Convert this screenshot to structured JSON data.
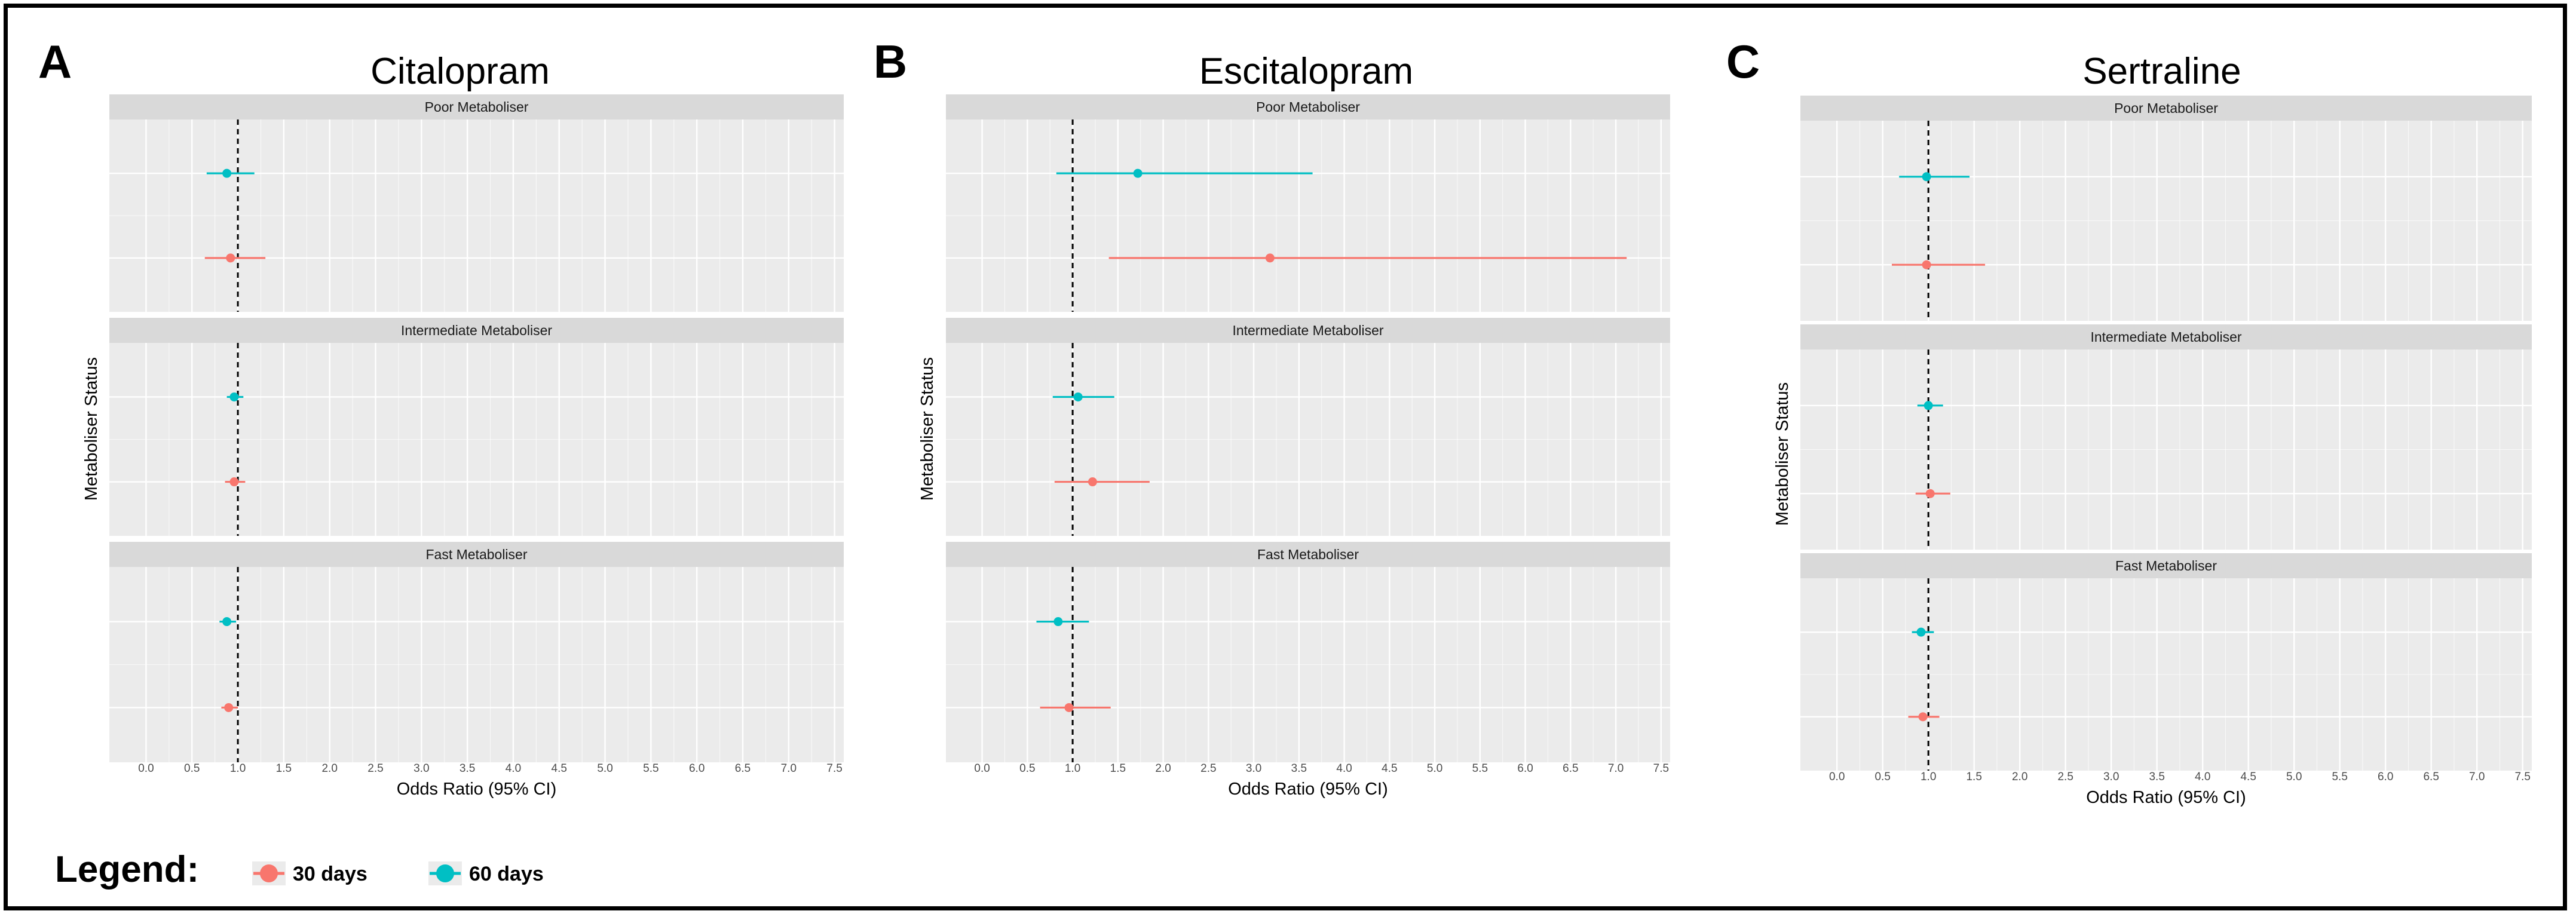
{
  "chart_data": [
    {
      "type": "forest",
      "panel_letter": "A",
      "title": "Citalopram",
      "xlabel": "Odds Ratio (95% CI)",
      "ylabel": "Metaboliser Status",
      "xlim": [
        -0.4,
        7.6
      ],
      "xticks": [
        "0.0",
        "0.5",
        "1.0",
        "1.5",
        "2.0",
        "2.5",
        "3.0",
        "3.5",
        "4.0",
        "4.5",
        "5.0",
        "5.5",
        "6.0",
        "6.5",
        "7.0",
        "7.5"
      ],
      "reference_line": 1.0,
      "facets": [
        {
          "label": "Poor Metaboliser",
          "series": [
            {
              "name": "60 days",
              "or": 0.88,
              "lo": 0.66,
              "hi": 1.18
            },
            {
              "name": "30 days",
              "or": 0.92,
              "lo": 0.64,
              "hi": 1.3
            }
          ]
        },
        {
          "label": "Intermediate Metaboliser",
          "series": [
            {
              "name": "60 days",
              "or": 0.96,
              "lo": 0.88,
              "hi": 1.06
            },
            {
              "name": "30 days",
              "or": 0.96,
              "lo": 0.86,
              "hi": 1.08
            }
          ]
        },
        {
          "label": "Fast Metaboliser",
          "series": [
            {
              "name": "60 days",
              "or": 0.88,
              "lo": 0.8,
              "hi": 0.98
            },
            {
              "name": "30 days",
              "or": 0.9,
              "lo": 0.82,
              "hi": 1.0
            }
          ]
        }
      ]
    },
    {
      "type": "forest",
      "panel_letter": "B",
      "title": "Escitalopram",
      "xlabel": "Odds Ratio (95% CI)",
      "ylabel": "Metaboliser Status",
      "xlim": [
        -0.4,
        7.6
      ],
      "xticks": [
        "0.0",
        "0.5",
        "1.0",
        "1.5",
        "2.0",
        "2.5",
        "3.0",
        "3.5",
        "4.0",
        "4.5",
        "5.0",
        "5.5",
        "6.0",
        "6.5",
        "7.0",
        "7.5"
      ],
      "reference_line": 1.0,
      "facets": [
        {
          "label": "Poor Metaboliser",
          "series": [
            {
              "name": "60 days",
              "or": 1.72,
              "lo": 0.82,
              "hi": 3.65
            },
            {
              "name": "30 days",
              "or": 3.18,
              "lo": 1.4,
              "hi": 7.12
            }
          ]
        },
        {
          "label": "Intermediate Metaboliser",
          "series": [
            {
              "name": "60 days",
              "or": 1.06,
              "lo": 0.78,
              "hi": 1.46
            },
            {
              "name": "30 days",
              "or": 1.22,
              "lo": 0.8,
              "hi": 1.85
            }
          ]
        },
        {
          "label": "Fast Metaboliser",
          "series": [
            {
              "name": "60 days",
              "or": 0.84,
              "lo": 0.6,
              "hi": 1.18
            },
            {
              "name": "30 days",
              "or": 0.96,
              "lo": 0.64,
              "hi": 1.42
            }
          ]
        }
      ]
    },
    {
      "type": "forest",
      "panel_letter": "C",
      "title": "Sertraline",
      "xlabel": "Odds Ratio (95% CI)",
      "ylabel": "Metaboliser Status",
      "xlim": [
        -0.4,
        7.6
      ],
      "xticks": [
        "0.0",
        "0.5",
        "1.0",
        "1.5",
        "2.0",
        "2.5",
        "3.0",
        "3.5",
        "4.0",
        "4.5",
        "5.0",
        "5.5",
        "6.0",
        "6.5",
        "7.0",
        "7.5"
      ],
      "reference_line": 1.0,
      "facets": [
        {
          "label": "Poor Metaboliser",
          "series": [
            {
              "name": "60 days",
              "or": 0.98,
              "lo": 0.68,
              "hi": 1.45
            },
            {
              "name": "30 days",
              "or": 0.98,
              "lo": 0.6,
              "hi": 1.62
            }
          ]
        },
        {
          "label": "Intermediate Metaboliser",
          "series": [
            {
              "name": "60 days",
              "or": 1.0,
              "lo": 0.88,
              "hi": 1.16
            },
            {
              "name": "30 days",
              "or": 1.02,
              "lo": 0.86,
              "hi": 1.24
            }
          ]
        },
        {
          "label": "Fast Metaboliser",
          "series": [
            {
              "name": "60 days",
              "or": 0.92,
              "lo": 0.82,
              "hi": 1.06
            },
            {
              "name": "30 days",
              "or": 0.94,
              "lo": 0.78,
              "hi": 1.12
            }
          ]
        }
      ]
    }
  ],
  "legend": {
    "title": "Legend:",
    "items": [
      {
        "label": "30 days",
        "color": "#F8766D"
      },
      {
        "label": "60 days",
        "color": "#00BFC4"
      }
    ]
  },
  "colors": {
    "30 days": "#F8766D",
    "60 days": "#00BFC4",
    "panel_bg": "#EBEBEB",
    "strip_bg": "#D9D9D9",
    "grid": "#FFFFFF"
  }
}
